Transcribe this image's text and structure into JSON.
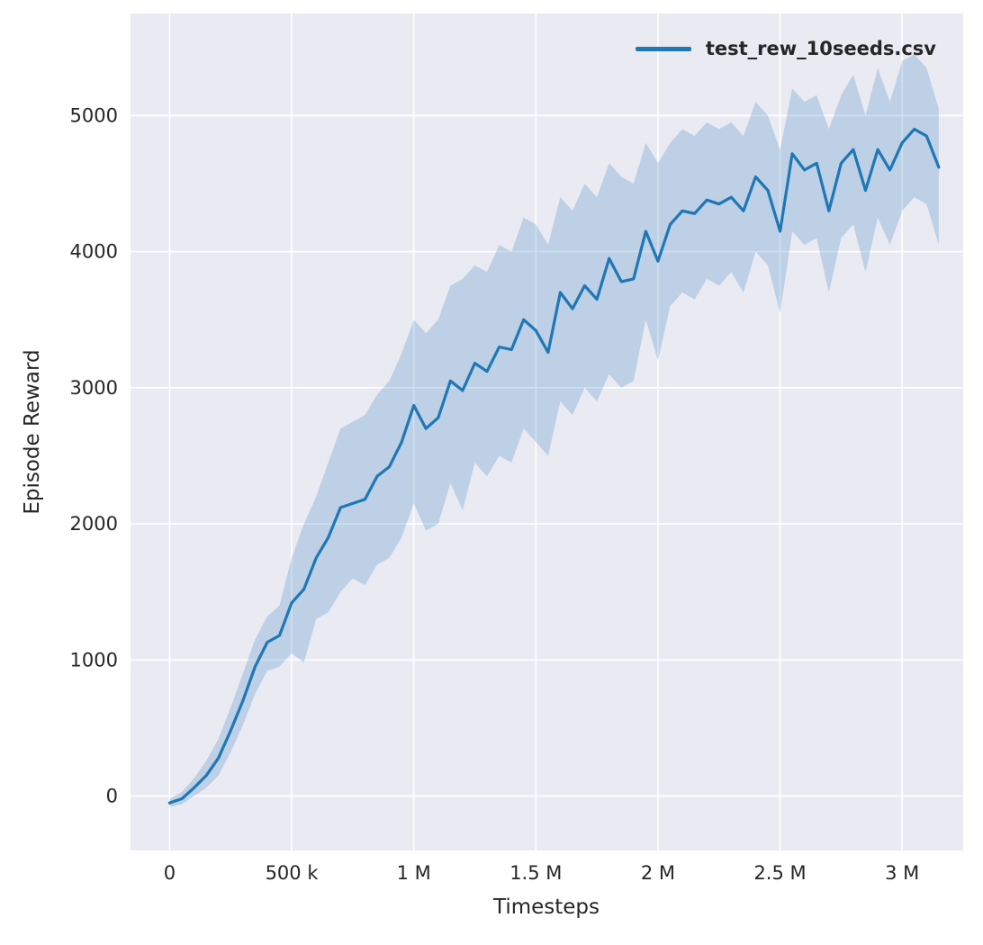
{
  "figure": {
    "background": "#ffffff",
    "plot_background": "#eaeaf2",
    "grid_color": "#ffffff",
    "tick_color": "#262626"
  },
  "axes": {
    "xlabel": "Timesteps",
    "ylabel": "Episode Reward"
  },
  "legend": {
    "position": "upper right",
    "items": [
      {
        "label": "test_rew_10seeds.csv",
        "color": "#1f77b4"
      }
    ]
  },
  "chart_data": {
    "type": "line",
    "title": "",
    "xlabel": "Timesteps",
    "ylabel": "Episode Reward",
    "grid": true,
    "legend_position": "upper right",
    "xlim": [
      -160000,
      3250000
    ],
    "ylim": [
      -400,
      5750
    ],
    "xticks": {
      "values": [
        0,
        500000,
        1000000,
        1500000,
        2000000,
        2500000,
        3000000
      ],
      "labels": [
        "0",
        "500 k",
        "1 M",
        "1.5 M",
        "2 M",
        "2.5 M",
        "3 M"
      ]
    },
    "yticks": {
      "values": [
        0,
        1000,
        2000,
        3000,
        4000,
        5000
      ],
      "labels": [
        "0",
        "1000",
        "2000",
        "3000",
        "4000",
        "5000"
      ]
    },
    "series": [
      {
        "name": "test_rew_10seeds.csv",
        "color": "#1f77b4",
        "line_width": 3.2,
        "band_opacity": 0.22,
        "x": [
          0,
          50000,
          100000,
          150000,
          200000,
          250000,
          300000,
          350000,
          400000,
          450000,
          500000,
          550000,
          600000,
          650000,
          700000,
          750000,
          800000,
          850000,
          900000,
          950000,
          1000000,
          1050000,
          1100000,
          1150000,
          1200000,
          1250000,
          1300000,
          1350000,
          1400000,
          1450000,
          1500000,
          1550000,
          1600000,
          1650000,
          1700000,
          1750000,
          1800000,
          1850000,
          1900000,
          1950000,
          2000000,
          2050000,
          2100000,
          2150000,
          2200000,
          2250000,
          2300000,
          2350000,
          2400000,
          2450000,
          2500000,
          2550000,
          2600000,
          2650000,
          2700000,
          2750000,
          2800000,
          2850000,
          2900000,
          2950000,
          3000000,
          3050000,
          3100000,
          3150000
        ],
        "mean": [
          -50,
          -20,
          60,
          150,
          280,
          480,
          700,
          950,
          1130,
          1180,
          1420,
          1520,
          1750,
          1900,
          2120,
          2150,
          2180,
          2350,
          2420,
          2600,
          2870,
          2700,
          2780,
          3050,
          2980,
          3180,
          3120,
          3300,
          3280,
          3500,
          3420,
          3260,
          3700,
          3580,
          3750,
          3650,
          3950,
          3780,
          3800,
          4150,
          3930,
          4200,
          4300,
          4280,
          4380,
          4350,
          4400,
          4300,
          4550,
          4450,
          4150,
          4720,
          4600,
          4650,
          4300,
          4650,
          4750,
          4450,
          4750,
          4600,
          4800,
          4900,
          4850,
          4620
        ],
        "lower": [
          -80,
          -60,
          0,
          60,
          150,
          320,
          520,
          750,
          920,
          950,
          1050,
          980,
          1300,
          1350,
          1500,
          1600,
          1550,
          1700,
          1750,
          1900,
          2150,
          1950,
          2000,
          2300,
          2100,
          2450,
          2350,
          2500,
          2450,
          2700,
          2600,
          2500,
          2900,
          2800,
          3000,
          2900,
          3100,
          3000,
          3050,
          3500,
          3200,
          3600,
          3700,
          3650,
          3800,
          3750,
          3850,
          3700,
          4000,
          3900,
          3550,
          4150,
          4050,
          4100,
          3700,
          4100,
          4200,
          3850,
          4250,
          4050,
          4300,
          4400,
          4350,
          4050
        ],
        "upper": [
          -20,
          30,
          130,
          260,
          420,
          650,
          900,
          1150,
          1320,
          1400,
          1750,
          2000,
          2200,
          2450,
          2700,
          2750,
          2800,
          2950,
          3050,
          3250,
          3500,
          3400,
          3500,
          3750,
          3800,
          3900,
          3850,
          4050,
          4000,
          4250,
          4200,
          4050,
          4400,
          4300,
          4500,
          4400,
          4650,
          4550,
          4500,
          4800,
          4650,
          4800,
          4900,
          4850,
          4950,
          4900,
          4950,
          4850,
          5100,
          5000,
          4750,
          5200,
          5100,
          5150,
          4900,
          5150,
          5300,
          5000,
          5350,
          5100,
          5400,
          5450,
          5350,
          5050
        ]
      }
    ]
  }
}
